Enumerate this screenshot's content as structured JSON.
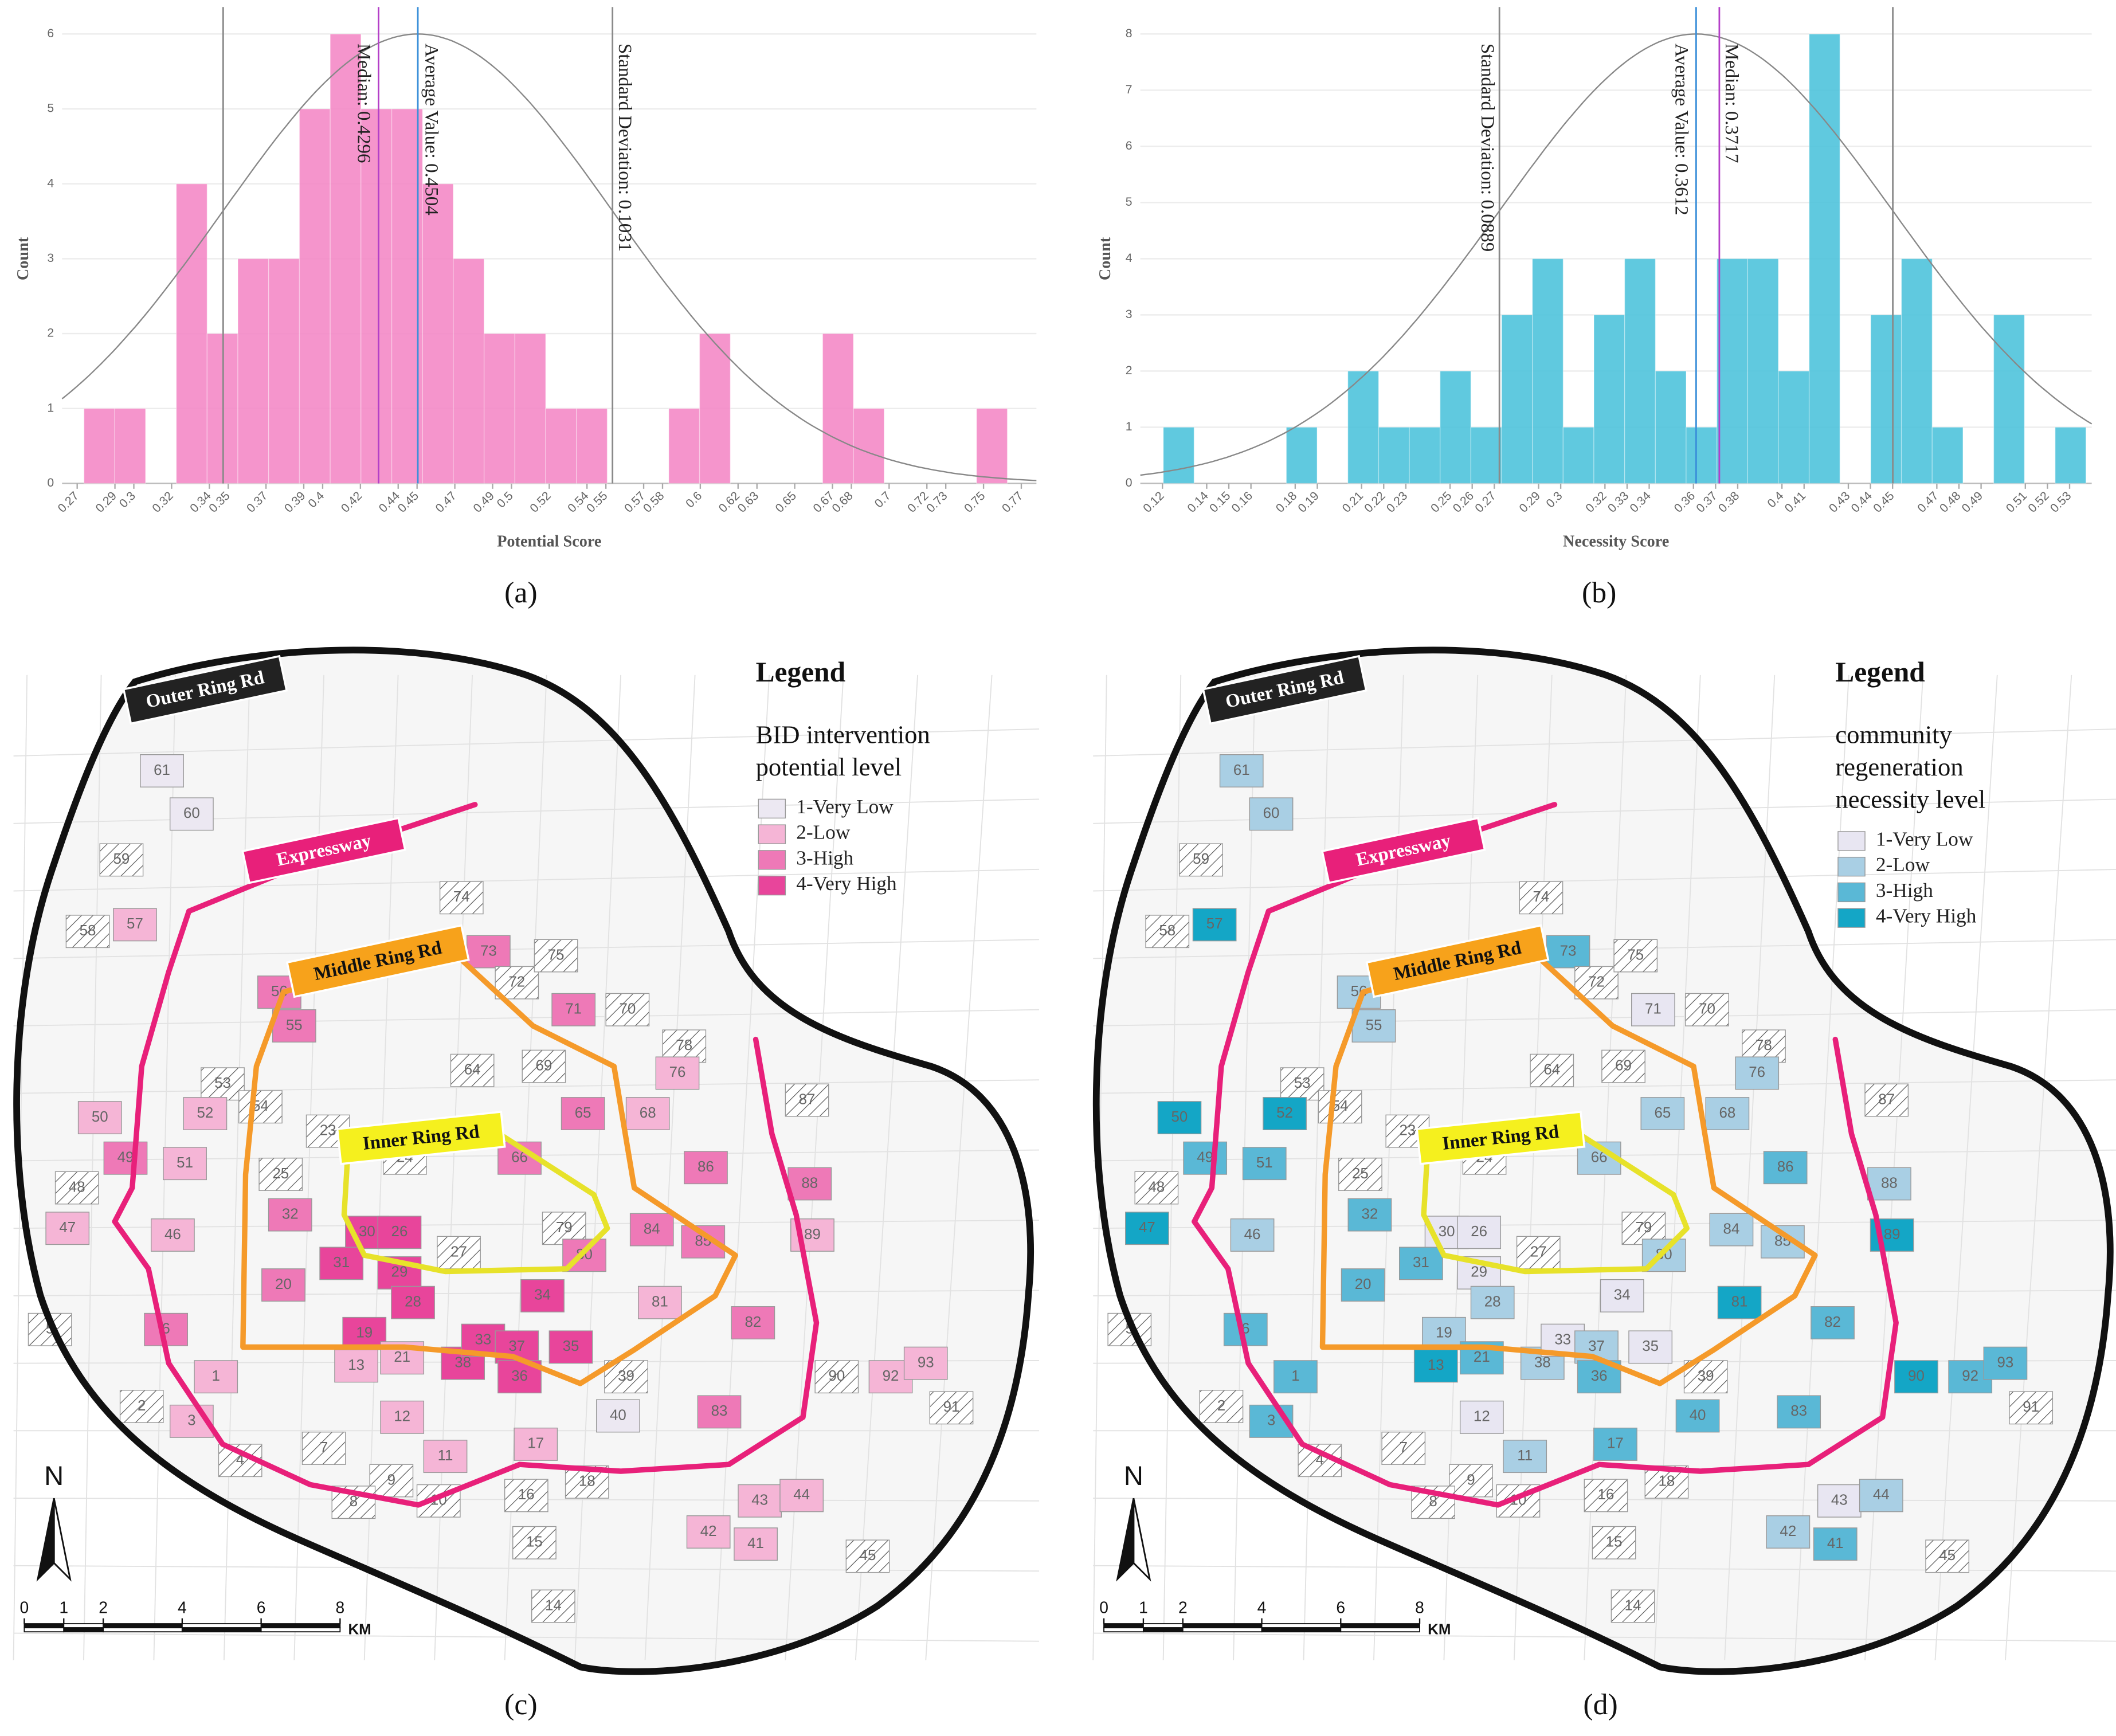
{
  "chart_data": [
    {
      "type": "histogram",
      "panel_label": "(a)",
      "x_label": "Potential Score",
      "y_label": "Count",
      "bins": [
        0.2736,
        0.2899,
        0.3062,
        0.3225,
        0.3388,
        0.3551,
        0.3714,
        0.3877,
        0.404,
        0.4203,
        0.4366,
        0.4529,
        0.4692,
        0.4855,
        0.5018,
        0.5181,
        0.5344,
        0.5507,
        0.567,
        0.5833,
        0.5996,
        0.6159,
        0.6322,
        0.6485,
        0.6648,
        0.6811,
        0.6974,
        0.7137,
        0.73,
        0.7463,
        0.7626
      ],
      "counts": [
        1,
        1,
        0,
        4,
        2,
        3,
        3,
        5,
        6,
        5,
        5,
        4,
        3,
        2,
        2,
        1,
        1,
        0,
        0,
        1,
        2,
        0,
        0,
        0,
        2,
        1,
        0,
        0,
        0,
        1
      ],
      "color": "#f48ac6",
      "xlim": [
        0.262,
        0.778
      ],
      "xticks": [
        0.27,
        0.29,
        0.3,
        0.32,
        0.34,
        0.35,
        0.37,
        0.39,
        0.4,
        0.42,
        0.44,
        0.45,
        0.47,
        0.49,
        0.5,
        0.52,
        0.54,
        0.55,
        0.57,
        0.58,
        0.6,
        0.62,
        0.63,
        0.65,
        0.67,
        0.68,
        0.7,
        0.72,
        0.73,
        0.75,
        0.77
      ],
      "ylim": [
        0,
        6
      ],
      "yticks": [
        0,
        1,
        2,
        3,
        4,
        5,
        6
      ],
      "grid": true,
      "median": {
        "label": "Median: 0.4296",
        "value": 0.4296,
        "color": "#b43fc8"
      },
      "mean": {
        "label": "Average Value: 0.4504",
        "value": 0.4504,
        "color": "#3a8fd9"
      },
      "std": {
        "label": "Standard Deviation: 0.1031",
        "value": 0.1031,
        "color": "#8a8a8a"
      }
    },
    {
      "type": "histogram",
      "panel_label": "(b)",
      "x_label": "Necessity Score",
      "y_label": "Count",
      "bins": [
        0.1204,
        0.1343,
        0.1482,
        0.1621,
        0.176,
        0.1899,
        0.2038,
        0.2177,
        0.2316,
        0.2455,
        0.2594,
        0.2733,
        0.2872,
        0.3011,
        0.315,
        0.3289,
        0.3428,
        0.3567,
        0.3706,
        0.3845,
        0.3984,
        0.4123,
        0.4262,
        0.4401,
        0.454,
        0.4679,
        0.4818,
        0.4957,
        0.5096,
        0.5235,
        0.5374
      ],
      "counts": [
        1,
        0,
        0,
        0,
        1,
        0,
        2,
        1,
        1,
        2,
        1,
        3,
        4,
        1,
        3,
        4,
        2,
        1,
        4,
        4,
        2,
        8,
        0,
        3,
        4,
        1,
        0,
        3,
        0,
        1
      ],
      "color": "#4fc3dc",
      "xlim": [
        0.11,
        0.54
      ],
      "xticks": [
        0.12,
        0.14,
        0.15,
        0.16,
        0.18,
        0.19,
        0.21,
        0.22,
        0.23,
        0.25,
        0.26,
        0.27,
        0.29,
        0.3,
        0.32,
        0.33,
        0.34,
        0.36,
        0.37,
        0.38,
        0.4,
        0.41,
        0.43,
        0.44,
        0.45,
        0.47,
        0.48,
        0.49,
        0.51,
        0.52,
        0.53
      ],
      "ylim": [
        0,
        8
      ],
      "yticks": [
        0,
        1,
        2,
        3,
        4,
        5,
        6,
        7,
        8
      ],
      "grid": true,
      "median": {
        "label": "Median: 0.3717",
        "value": 0.3717,
        "color": "#b43fc8"
      },
      "mean": {
        "label": "Average Value: 0.3612",
        "value": 0.3612,
        "color": "#3a8fd9"
      },
      "std": {
        "label": "Standard Deviation: 0.0889",
        "value": 0.0889,
        "color": "#8a8a8a"
      }
    }
  ],
  "maps": [
    {
      "panel_label": "(c)",
      "legend_title": "Legend",
      "legend_subtitle": [
        "BID intervention",
        "potential level"
      ],
      "legend_items": [
        "1-Very Low",
        "2-Low",
        "3-High",
        "4-Very High"
      ],
      "level_colors": [
        "#ece8f2",
        "#f5b5d6",
        "#ee79b7",
        "#e8459b"
      ],
      "roads": [
        "Outer Ring Rd",
        "Expressway",
        "Middle Ring Rd",
        "Inner Ring Rd"
      ],
      "north": "N",
      "scale_ticks": [
        0,
        1,
        2,
        4,
        6,
        8
      ],
      "scale_unit": "KM",
      "districts": [
        "61",
        "60",
        "59",
        "58",
        "57",
        "56",
        "55",
        "74",
        "73",
        "72",
        "75",
        "71",
        "70",
        "78",
        "76",
        "68",
        "65",
        "64",
        "69",
        "87",
        "53",
        "54",
        "52",
        "50",
        "51",
        "49",
        "23",
        "24",
        "66",
        "86",
        "88",
        "89",
        "48",
        "47",
        "46",
        "25",
        "32",
        "30",
        "26",
        "27",
        "79",
        "84",
        "85",
        "80",
        "20",
        "31",
        "29",
        "28",
        "34",
        "81",
        "82",
        "6",
        "19",
        "21",
        "38",
        "33",
        "37",
        "35",
        "36",
        "39",
        "13",
        "5",
        "1",
        "2",
        "3",
        "90",
        "92",
        "93",
        "91",
        "40",
        "83",
        "12",
        "7",
        "4",
        "11",
        "17",
        "9",
        "8",
        "10",
        "16",
        "18",
        "43",
        "44",
        "42",
        "41",
        "15",
        "45",
        "14"
      ],
      "levels": [
        1,
        1,
        null,
        null,
        2,
        3,
        3,
        null,
        3,
        null,
        null,
        3,
        null,
        null,
        2,
        2,
        3,
        null,
        null,
        null,
        null,
        null,
        2,
        2,
        2,
        3,
        null,
        null,
        3,
        3,
        3,
        2,
        null,
        2,
        2,
        null,
        3,
        4,
        4,
        null,
        null,
        3,
        3,
        3,
        3,
        4,
        4,
        4,
        4,
        2,
        3,
        3,
        4,
        2,
        4,
        4,
        4,
        4,
        4,
        null,
        2,
        null,
        2,
        null,
        2,
        null,
        2,
        2,
        null,
        1,
        3,
        2,
        null,
        null,
        2,
        2,
        null,
        null,
        null,
        null,
        null,
        2,
        2,
        2,
        2,
        null,
        null,
        null
      ]
    },
    {
      "panel_label": "(d)",
      "legend_title": "Legend",
      "legend_subtitle": [
        "community",
        "regeneration",
        "necessity level"
      ],
      "legend_items": [
        "1-Very Low",
        "2-Low",
        "3-High",
        "4-Very High"
      ],
      "level_colors": [
        "#e8e6f2",
        "#a9cfe4",
        "#5ab8d6",
        "#14a6c6"
      ],
      "roads": [
        "Outer Ring Rd",
        "Expressway",
        "Middle Ring Rd",
        "Inner Ring Rd"
      ],
      "north": "N",
      "scale_ticks": [
        0,
        1,
        2,
        4,
        6,
        8
      ],
      "scale_unit": "KM",
      "districts": [
        "61",
        "60",
        "59",
        "58",
        "57",
        "56",
        "55",
        "74",
        "73",
        "72",
        "75",
        "71",
        "70",
        "78",
        "76",
        "68",
        "65",
        "64",
        "69",
        "87",
        "53",
        "54",
        "52",
        "50",
        "51",
        "49",
        "23",
        "24",
        "66",
        "86",
        "88",
        "89",
        "48",
        "47",
        "46",
        "25",
        "32",
        "30",
        "26",
        "27",
        "79",
        "84",
        "85",
        "80",
        "20",
        "31",
        "29",
        "28",
        "34",
        "81",
        "82",
        "6",
        "19",
        "21",
        "38",
        "33",
        "37",
        "35",
        "36",
        "39",
        "13",
        "5",
        "1",
        "2",
        "3",
        "90",
        "92",
        "93",
        "91",
        "40",
        "83",
        "12",
        "7",
        "4",
        "11",
        "17",
        "9",
        "8",
        "10",
        "16",
        "18",
        "43",
        "44",
        "42",
        "41",
        "15",
        "45",
        "14"
      ],
      "levels": [
        2,
        2,
        null,
        null,
        4,
        2,
        2,
        null,
        3,
        null,
        null,
        1,
        null,
        null,
        2,
        2,
        2,
        null,
        null,
        null,
        null,
        null,
        4,
        4,
        3,
        3,
        null,
        null,
        2,
        3,
        2,
        4,
        null,
        4,
        2,
        null,
        3,
        1,
        1,
        null,
        null,
        2,
        2,
        2,
        3,
        3,
        1,
        2,
        1,
        4,
        3,
        3,
        2,
        3,
        2,
        1,
        2,
        1,
        3,
        null,
        4,
        null,
        3,
        null,
        3,
        4,
        3,
        3,
        null,
        3,
        3,
        1,
        null,
        null,
        2,
        3,
        null,
        null,
        null,
        null,
        null,
        1,
        2,
        2,
        3,
        null,
        null,
        null
      ]
    }
  ]
}
